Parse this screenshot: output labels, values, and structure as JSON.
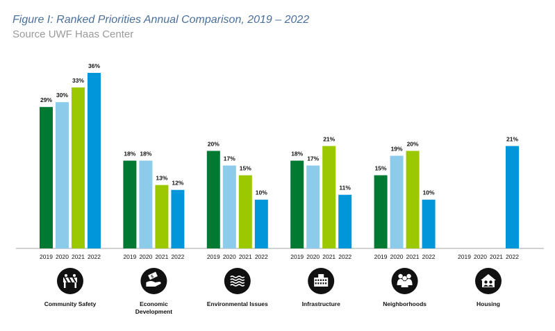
{
  "title": "Figure I: Ranked Priorities Annual Comparison, 2019 – 2022",
  "subtitle": "Source UWF Haas Center",
  "chart_data": {
    "type": "bar",
    "title": "Figure I: Ranked Priorities Annual Comparison, 2019 – 2022",
    "subtitle": "Source UWF Haas Center",
    "years": [
      "2019",
      "2020",
      "2021",
      "2022"
    ],
    "year_colors": [
      "#007a33",
      "#8ccbea",
      "#9bc800",
      "#0096d9"
    ],
    "ylim": [
      0,
      40
    ],
    "grid": false,
    "categories": [
      {
        "name": "Community Safety",
        "lines": [
          "Community Safety"
        ],
        "icon": "barrier-icon",
        "values": [
          29,
          30,
          33,
          36
        ],
        "labels": [
          "29%",
          "30%",
          "33%",
          "36%"
        ]
      },
      {
        "name": "Economic Development",
        "lines": [
          "Economic",
          "Development"
        ],
        "icon": "hand-money-icon",
        "values": [
          18,
          18,
          13,
          12
        ],
        "labels": [
          "18%",
          "18%",
          "13%",
          "12%"
        ]
      },
      {
        "name": "Environmental Issues",
        "lines": [
          "Environmental Issues"
        ],
        "icon": "waves-icon",
        "values": [
          20,
          17,
          15,
          10
        ],
        "labels": [
          "20%",
          "17%",
          "15%",
          "10%"
        ]
      },
      {
        "name": "Infrastructure",
        "lines": [
          "Infrastructure"
        ],
        "icon": "building-icon",
        "values": [
          18,
          17,
          21,
          11
        ],
        "labels": [
          "18%",
          "17%",
          "21%",
          "11%"
        ]
      },
      {
        "name": "Neighborhoods",
        "lines": [
          "Neighborhoods"
        ],
        "icon": "people-icon",
        "values": [
          15,
          19,
          20,
          10
        ],
        "labels": [
          "15%",
          "19%",
          "20%",
          "10%"
        ]
      },
      {
        "name": "Housing",
        "lines": [
          "Housing"
        ],
        "icon": "house-icon",
        "values": [
          null,
          null,
          null,
          21
        ],
        "labels": [
          "",
          "",
          "",
          "21%"
        ]
      }
    ]
  }
}
